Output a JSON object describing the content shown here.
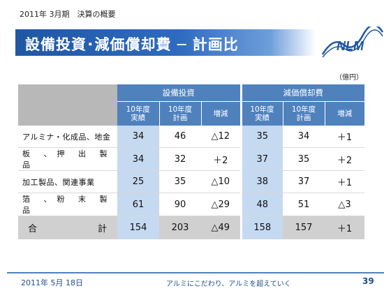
{
  "header": {
    "period_label": "2011年 3月期　決算の概要",
    "title": "設備投資･減価償却費 ─ 計画比",
    "logo_text": "NLM"
  },
  "unit_label": "（億円）",
  "table": {
    "groups": [
      "設備投資",
      "減価償却費"
    ],
    "subheaders": [
      "10年度\n実績",
      "10年度\n計画",
      "増減",
      "10年度\n実績",
      "10年度\n計画",
      "増減"
    ],
    "rows": [
      {
        "label": "アルミナ・化成品、地金",
        "cells": [
          "34",
          "46",
          "△12",
          "35",
          "34",
          "＋1"
        ]
      },
      {
        "label": "板 、押 出 製 品",
        "cells": [
          "34",
          "32",
          "＋2",
          "37",
          "35",
          "＋2"
        ]
      },
      {
        "label": "加工製品、関連事業",
        "cells": [
          "25",
          "35",
          "△10",
          "38",
          "37",
          "＋1"
        ]
      },
      {
        "label": "箔 、粉 末 製 品",
        "cells": [
          "61",
          "90",
          "△29",
          "48",
          "51",
          "△3"
        ]
      }
    ],
    "total": {
      "label_left": "合",
      "label_right": "計",
      "cells": [
        "154",
        "203",
        "△49",
        "158",
        "157",
        "＋1"
      ]
    }
  },
  "footer": {
    "date": "2011年 5月 18日",
    "slogan": "アルミにこだわり、アルミを超えていく",
    "page_number": "39"
  },
  "colors": {
    "title_blue": "#1f57a3",
    "header_blue": "#4f81bd",
    "actual_light_blue": "#c5d9f1",
    "label_gray": "#b8b8b8"
  }
}
